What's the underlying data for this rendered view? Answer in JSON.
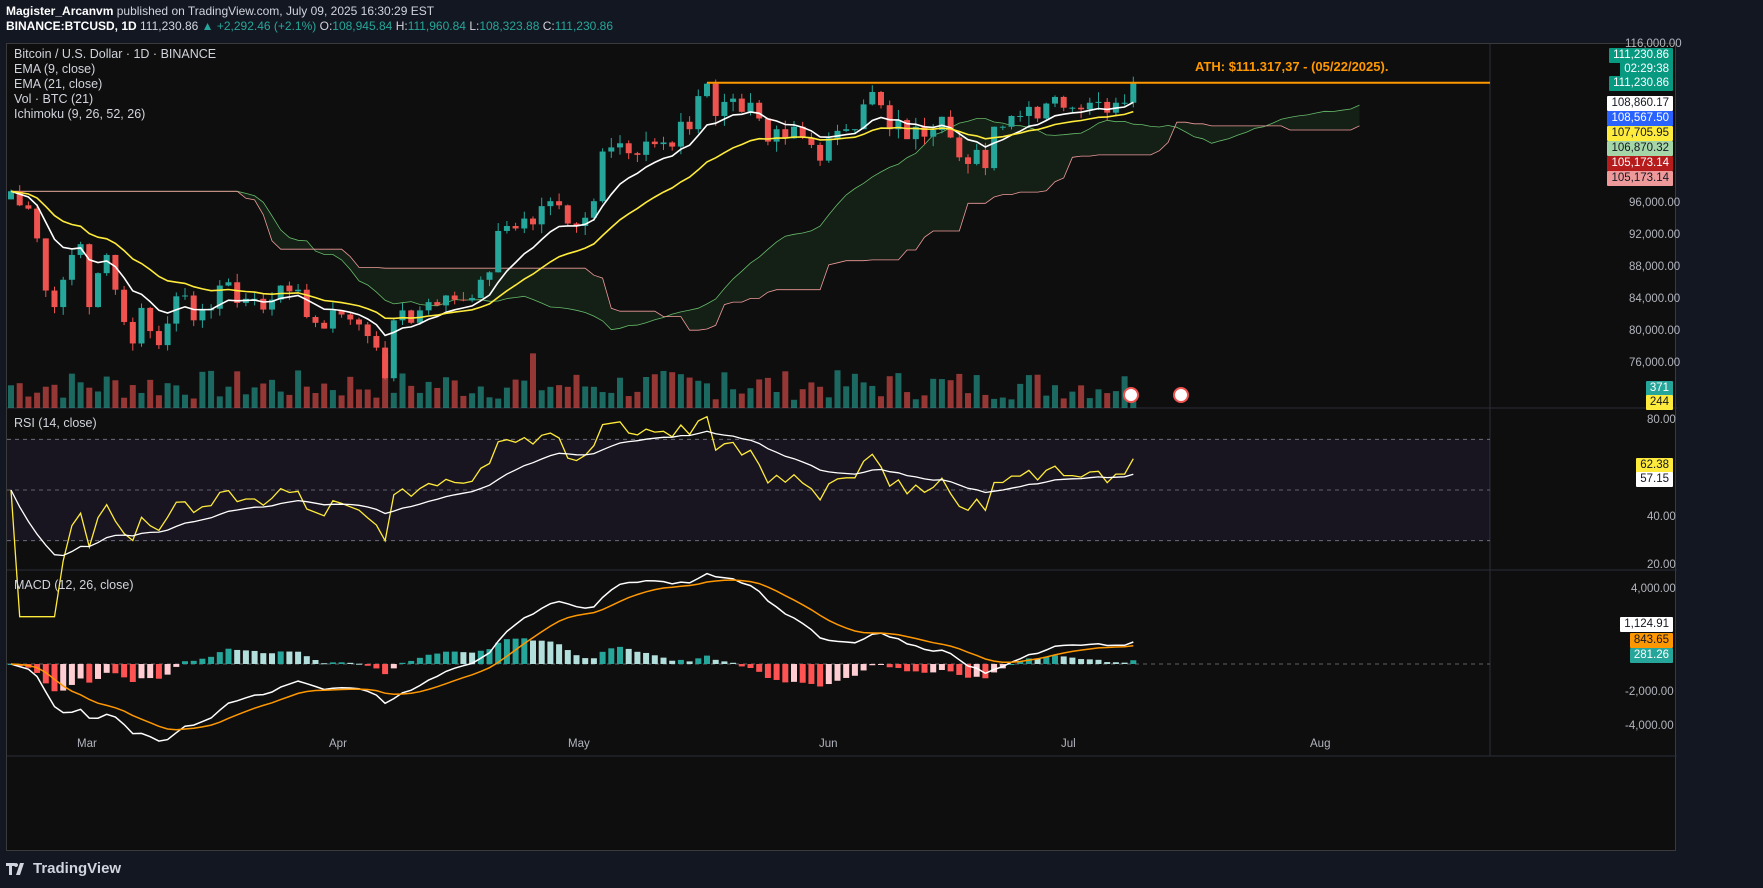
{
  "header": {
    "author": "Magister_Arcanvm",
    "published": "published on TradingView.com, July 09, 2025 16:30:29 EST",
    "symbol": "BINANCE:BTCUSD, 1D",
    "last": "111,230.86",
    "change": "▲ +2,292.46 (+2.1%)",
    "o_label": "O:",
    "o": "108,945.84",
    "h_label": "H:",
    "h": "111,960.84",
    "l_label": "L:",
    "l": "108,323.88",
    "c_label": "C:",
    "c": "111,230.86"
  },
  "legend": {
    "title": "Bitcoin / U.S. Dollar · 1D · BINANCE",
    "ema9": "EMA (9, close)",
    "ema21": "EMA (21, close)",
    "vol": "Vol · BTC (21)",
    "ichimoku": "Ichimoku (9, 26, 52, 26)",
    "rsi": "RSI (14, close)",
    "macd": "MACD (12, 26, close)"
  },
  "annotation": "ATH: $111.317,37 - (05/22/2025).",
  "price_axis": [
    "116,000.00",
    "96,000.00",
    "92,000.00",
    "88,000.00",
    "84,000.00",
    "80,000.00",
    "76,000.00",
    "80.00",
    "40.00",
    "20.00",
    "4,000.00",
    "-2,000.00",
    "-4,000.00"
  ],
  "price_labels": [
    {
      "text": "111,230.86",
      "bg": "#089981",
      "fg": "#ffffff"
    },
    {
      "text": "02:29:38",
      "bg": "#089981",
      "fg": "#ffffff"
    },
    {
      "text": "111,230.86",
      "bg": "#089981",
      "fg": "#ffffff"
    },
    {
      "text": "108,860.17",
      "bg": "#ffffff",
      "fg": "#131722"
    },
    {
      "text": "108,567.50",
      "bg": "#2962ff",
      "fg": "#ffffff"
    },
    {
      "text": "107,705.95",
      "bg": "#ffeb3b",
      "fg": "#131722"
    },
    {
      "text": "106,870.32",
      "bg": "#a5d6a7",
      "fg": "#131722"
    },
    {
      "text": "105,173.14",
      "bg": "#b71c1c",
      "fg": "#ffffff"
    },
    {
      "text": "105,173.14",
      "bg": "#ef9a9a",
      "fg": "#131722"
    },
    {
      "text": "371",
      "bg": "#26a69a",
      "fg": "#ffffff"
    },
    {
      "text": "244",
      "bg": "#ffeb3b",
      "fg": "#131722"
    },
    {
      "text": "62.38",
      "bg": "#ffeb3b",
      "fg": "#131722"
    },
    {
      "text": "57.15",
      "bg": "#ffffff",
      "fg": "#131722"
    },
    {
      "text": "1,124.91",
      "bg": "#ffffff",
      "fg": "#131722"
    },
    {
      "text": "843.65",
      "bg": "#ff9800",
      "fg": "#131722"
    },
    {
      "text": "281.26",
      "bg": "#26a69a",
      "fg": "#ffffff"
    }
  ],
  "footer": {
    "brand": "TradingView"
  },
  "colors": {
    "up": "#26a69a",
    "down": "#ef5350",
    "ema9": "#ffffff",
    "ema21": "#ffeb3b",
    "ath": "#ff9800",
    "rsi": "#ffeb3b",
    "rsi_ma": "#ffffff",
    "macd": "#ffffff",
    "signal": "#ff9800"
  },
  "chart_data": {
    "type": "candlestick",
    "x_ticks": [
      "Mar",
      "Apr",
      "May",
      "Jun",
      "Jul",
      "Aug"
    ],
    "price_range": [
      72000,
      116000
    ],
    "ath": 111317.37,
    "closes": [
      98200,
      96500,
      96100,
      92500,
      86200,
      84200,
      87500,
      90500,
      91800,
      84200,
      88300,
      90500,
      86300,
      82400,
      79800,
      84100,
      81300,
      79600,
      82200,
      85500,
      85600,
      82600,
      83800,
      84000,
      86800,
      87200,
      84700,
      85200,
      85200,
      83900,
      85100,
      86800,
      86100,
      86300,
      83000,
      82300,
      81600,
      83800,
      83300,
      82700,
      82100,
      80700,
      79300,
      75600,
      82600,
      83800,
      82300,
      83800,
      84800,
      84400,
      85600,
      85100,
      85000,
      85300,
      87500,
      88400,
      93400,
      94000,
      93700,
      94900,
      94200,
      96400,
      97000,
      96500,
      94300,
      94000,
      95000,
      97000,
      103000,
      103500,
      104000,
      102800,
      102600,
      104200,
      103900,
      104100,
      103600,
      106600,
      105700,
      109700,
      111200,
      107300,
      109000,
      109400,
      107800,
      108900,
      107000,
      104200,
      105700,
      104600,
      106000,
      104700,
      103800,
      101900,
      104600,
      105500,
      105700,
      105700,
      108700,
      110200,
      108600,
      105700,
      106800,
      104500,
      106000,
      104800,
      105600,
      107200,
      104700,
      102300,
      101500,
      103200,
      101000,
      106000,
      106000,
      107300,
      107300,
      108400,
      107000,
      108800,
      109600,
      108300,
      108300,
      108100,
      108900,
      109000,
      107700,
      108900,
      108900,
      111230
    ],
    "rsi": {
      "last": 62.38,
      "ma": 57.15,
      "range": [
        20,
        80
      ]
    },
    "macd": {
      "macd": 1124.91,
      "signal": 843.65,
      "hist": 281.26,
      "range": [
        -4000,
        4000
      ]
    },
    "volume": {
      "last": 371,
      "ma": 244
    }
  }
}
